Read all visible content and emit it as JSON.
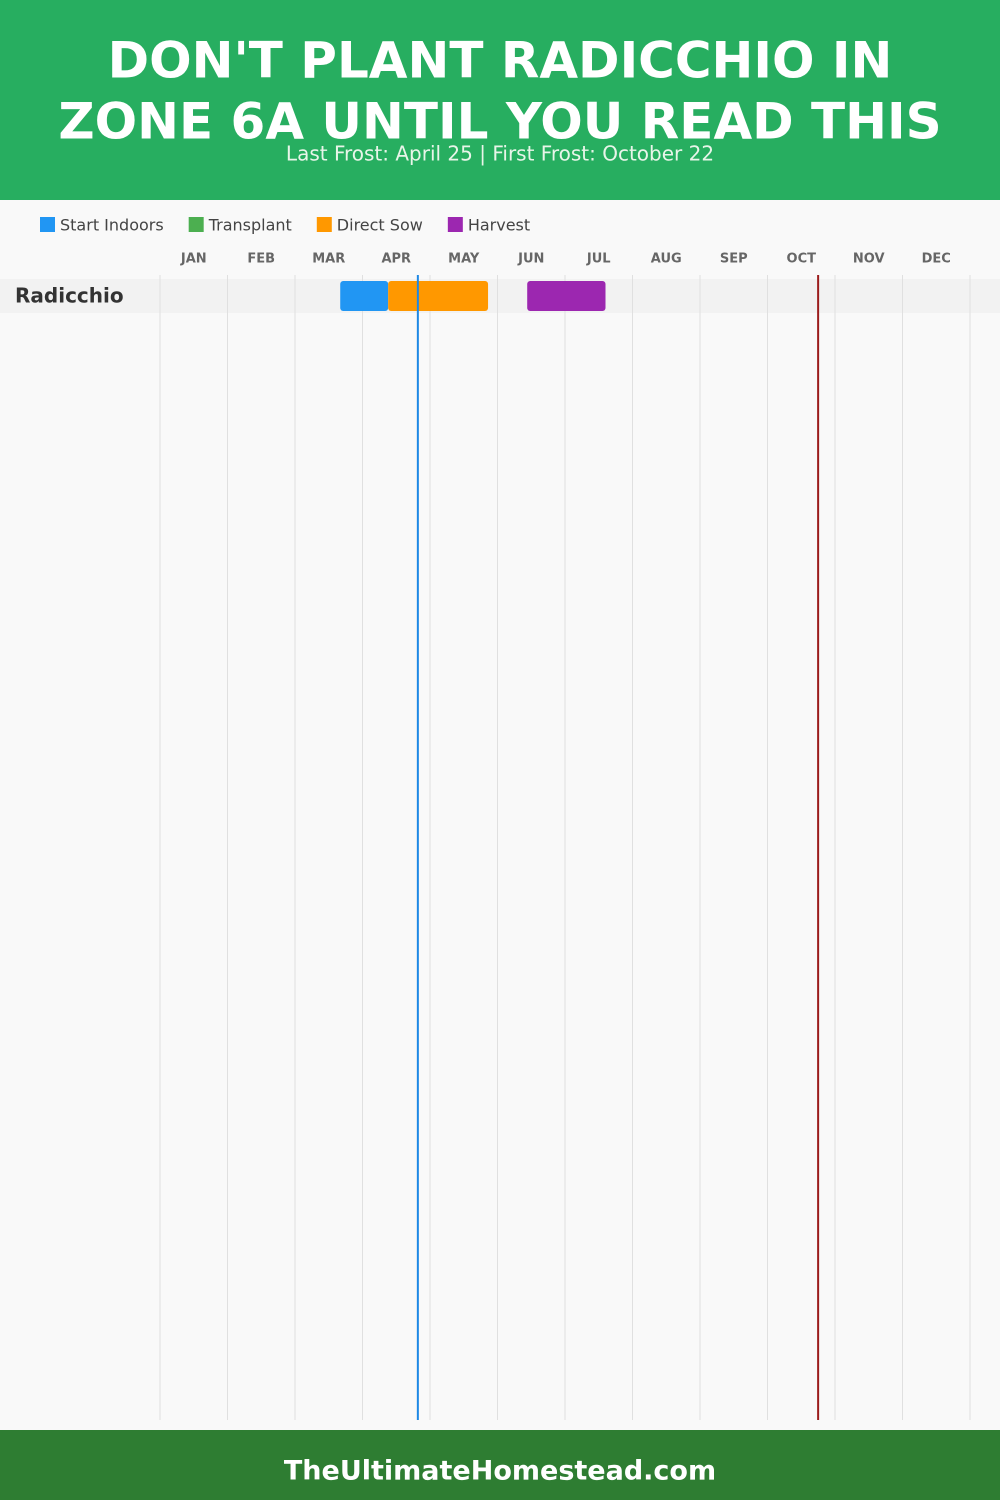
{
  "chart_data": {
    "type": "gantt",
    "title": [
      "DON'T PLANT RADICCHIO IN",
      "ZONE 6A UNTIL YOU READ THIS"
    ],
    "subtitle": "Last Frost: April 25 | First Frost: October 22",
    "series": [
      {
        "name": "Start Indoors",
        "color": "#2196f3"
      },
      {
        "name": "Transplant",
        "color": "#4caf50"
      },
      {
        "name": "Direct Sow",
        "color": "#ff9800"
      },
      {
        "name": "Harvest",
        "color": "#9c27b0"
      }
    ],
    "categories": [
      "JAN",
      "FEB",
      "MAR",
      "APR",
      "MAY",
      "JUN",
      "JUL",
      "AUG",
      "SEP",
      "OCT",
      "NOV",
      "DEC"
    ],
    "xlim": [
      0,
      12
    ],
    "xticks": [
      0,
      1,
      2,
      3,
      4,
      5,
      6,
      7,
      8,
      9,
      10,
      11,
      12
    ],
    "grid": true,
    "rows": [
      {
        "label": "Radicchio",
        "bars": [
          {
            "series": 0,
            "start": 2.67,
            "end": 3.38
          },
          {
            "series": 2,
            "start": 3.38,
            "end": 4.86
          },
          {
            "series": 3,
            "start": 5.44,
            "end": 6.6
          }
        ]
      }
    ],
    "markers": [
      {
        "value": 3.82,
        "color": "#1e88e5"
      },
      {
        "value": 9.75,
        "color": "#9b1c1c"
      }
    ],
    "footer": "TheUltimateHomestead.com"
  }
}
